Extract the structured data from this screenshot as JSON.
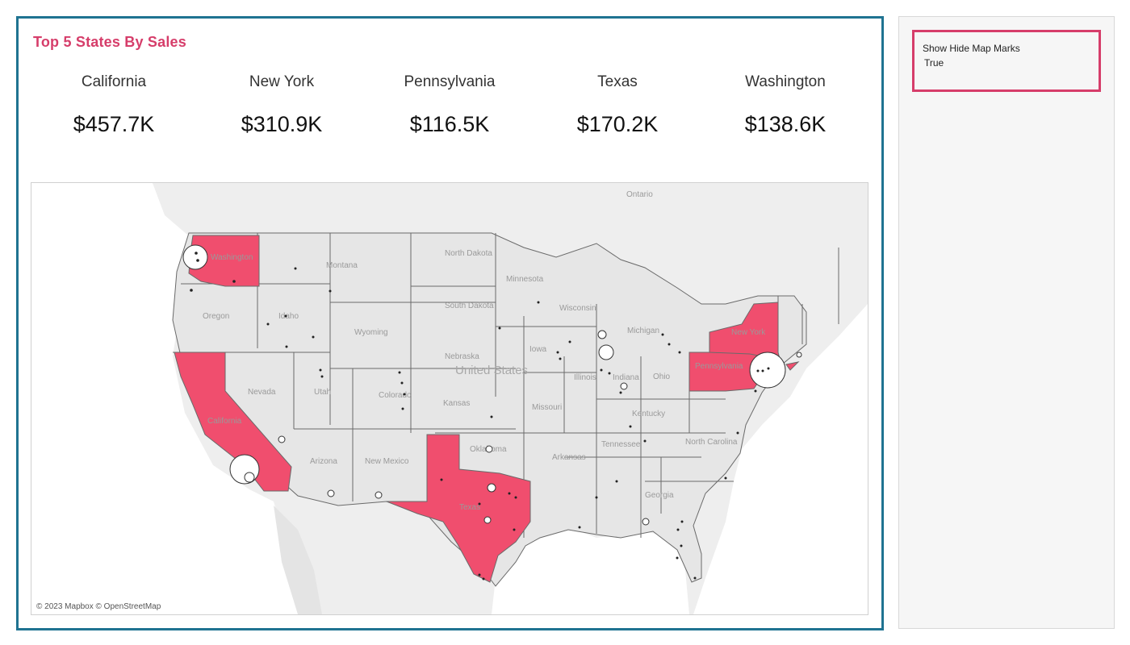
{
  "dashboard": {
    "title": "Top 5 States By Sales",
    "kpis": [
      {
        "state": "California",
        "value": "$457.7K"
      },
      {
        "state": "New York",
        "value": "$310.9K"
      },
      {
        "state": "Pennsylvania",
        "value": "$116.5K"
      },
      {
        "state": "Texas",
        "value": "$170.2K"
      },
      {
        "state": "Washington",
        "value": "$138.6K"
      }
    ]
  },
  "map": {
    "attribution": "© 2023 Mapbox © OpenStreetMap",
    "highlighted_states": [
      "California",
      "New York",
      "Pennsylvania",
      "Texas",
      "Washington"
    ],
    "labels": {
      "united_states": "United States",
      "ontario": "Ontario",
      "montana": "Montana",
      "north_dakota": "North Dakota",
      "minnesota": "Minnesota",
      "south_dakota": "South Dakota",
      "wisconsin": "Wisconsin",
      "michigan": "Michigan",
      "wyoming": "Wyoming",
      "idaho": "Idaho",
      "oregon": "Oregon",
      "nebraska": "Nebraska",
      "iowa": "Iowa",
      "nevada": "Nevada",
      "utah": "Utah",
      "colorado": "Colorado",
      "kansas": "Kansas",
      "missouri": "Missouri",
      "illinois": "Illinois",
      "indiana": "Indiana",
      "ohio": "Ohio",
      "kentucky": "Kentucky",
      "tennessee": "Tennessee",
      "arizona": "Arizona",
      "new_mexico": "New Mexico",
      "oklahoma": "Oklahoma",
      "arkansas": "Arkansas",
      "north_carolina": "North Carolina",
      "georgia": "Georgia",
      "texas": "Texas",
      "california": "California",
      "washington": "Washington",
      "new_york": "New York",
      "pennsylvania": "Pennsylvania"
    },
    "colors": {
      "highlight": "#f04e6e",
      "land": "#e6e6e6",
      "water": "#ffffff",
      "border": "#6a6a6a"
    }
  },
  "side_panel": {
    "parameter_label": "Show Hide Map Marks",
    "parameter_value": "True"
  }
}
